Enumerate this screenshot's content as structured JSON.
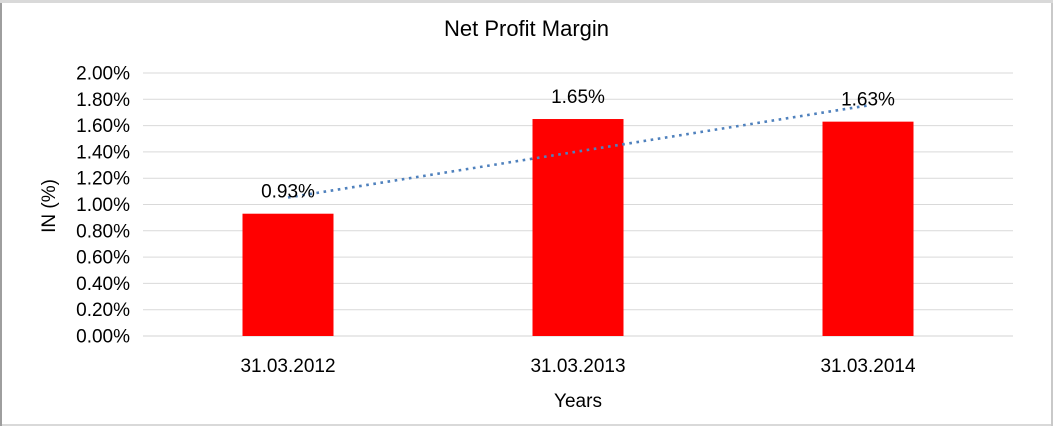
{
  "chart_data": {
    "type": "bar",
    "title": "Net Profit Margin",
    "xlabel": "Years",
    "ylabel": "IN (%)",
    "categories": [
      "31.03.2012",
      "31.03.2013",
      "31.03.2014"
    ],
    "values": [
      0.93,
      1.65,
      1.63
    ],
    "data_labels": [
      "0.93%",
      "1.65%",
      "1.63%"
    ],
    "ylim": [
      0,
      2.0
    ],
    "ytick_step": 0.2,
    "ytick_labels": [
      "0.00%",
      "0.20%",
      "0.40%",
      "0.60%",
      "0.80%",
      "1.00%",
      "1.20%",
      "1.40%",
      "1.60%",
      "1.80%",
      "2.00%"
    ],
    "grid": true,
    "legend": "none",
    "trendline": {
      "type": "linear",
      "style": "dotted"
    },
    "colors": {
      "bar": "#FF0000",
      "trendline": "#4F81BD",
      "gridline": "#D9D9D9",
      "axis_line": "#D3D3D3",
      "text": "#000000"
    }
  }
}
